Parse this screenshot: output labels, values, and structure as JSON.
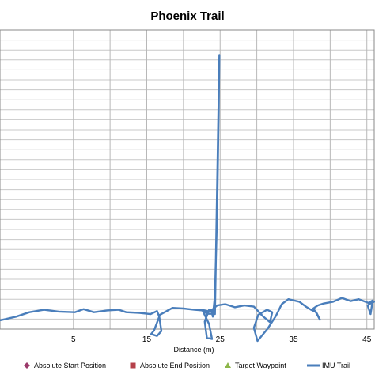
{
  "chart_data": {
    "type": "scatter",
    "title": "Phoenix Trail",
    "xlabel": "Distance (m)",
    "ylabel": "",
    "xlim": [
      -5,
      46
    ],
    "ylim": [
      -8,
      40
    ],
    "xticks": [
      5,
      15,
      25,
      35,
      45
    ],
    "xtick_labels": [
      "5",
      "15",
      "25",
      "35",
      "45"
    ],
    "horizontal_grid_count": 30,
    "vertical_grid": [
      5,
      10,
      15,
      20,
      25,
      30,
      35,
      40,
      45
    ],
    "grid": true,
    "legend_placement": "bottom",
    "series": [
      {
        "name": "Absolute Start Position",
        "marker": "diamond",
        "color": "#9B3A6A",
        "points": []
      },
      {
        "name": "Absolute End Position",
        "marker": "square",
        "color": "#B5404A",
        "points": []
      },
      {
        "name": "Target Waypoint",
        "marker": "triangle",
        "color": "#8DB64A",
        "points": []
      },
      {
        "name": "IMU Trail",
        "marker": "line",
        "color": "#4A7EBB",
        "x": [
          -5.0,
          -2.8,
          -1.0,
          1.0,
          3.0,
          5.2,
          6.4,
          7.8,
          9.6,
          11.2,
          12.2,
          14.0,
          15.5,
          16.4,
          16.7,
          17.0,
          16.4,
          15.6,
          16.0,
          16.8,
          18.5,
          20.0,
          21.5,
          22.6,
          23.5,
          23.9,
          23.2,
          22.9,
          23.5,
          23.8,
          24.0,
          24.3,
          24.6,
          24.8,
          24.9,
          24.3,
          23.2,
          22.5,
          23.6,
          24.6,
          25.7,
          27.0,
          28.3,
          29.6,
          30.8,
          31.8,
          32.1,
          31.4,
          30.2,
          29.6,
          30.1,
          31.5,
          32.6,
          33.4,
          34.3,
          35.8,
          36.7,
          37.4,
          38.1,
          38.6,
          38.1,
          37.7,
          38.3,
          39.1,
          40.4,
          41.6,
          42.8,
          43.9,
          45.2,
          45.8,
          45.5,
          45.1,
          45.6,
          46.0
        ],
        "y": [
          -6.6,
          -6.0,
          -5.3,
          -4.9,
          -5.2,
          -5.3,
          -4.8,
          -5.3,
          -5.0,
          -4.9,
          -5.3,
          -5.4,
          -5.6,
          -5.1,
          -6.0,
          -8.3,
          -9.1,
          -8.8,
          -8.2,
          -5.7,
          -4.6,
          -4.7,
          -4.9,
          -5.0,
          -7.2,
          -9.6,
          -9.4,
          -6.8,
          -4.9,
          -4.9,
          -6.0,
          -2.6,
          11.0,
          27.0,
          36.0,
          -5.6,
          -5.5,
          -4.9,
          -5.2,
          -4.2,
          -4.0,
          -4.5,
          -4.2,
          -4.4,
          -5.9,
          -6.9,
          -5.3,
          -4.9,
          -5.7,
          -7.8,
          -9.9,
          -7.9,
          -5.9,
          -4.0,
          -3.2,
          -3.6,
          -4.4,
          -4.9,
          -5.3,
          -6.5,
          -5.4,
          -4.7,
          -4.2,
          -3.9,
          -3.6,
          -3.0,
          -3.5,
          -3.2,
          -3.8,
          -3.4,
          -5.6,
          -4.2,
          -3.8,
          -3.6
        ]
      }
    ]
  }
}
